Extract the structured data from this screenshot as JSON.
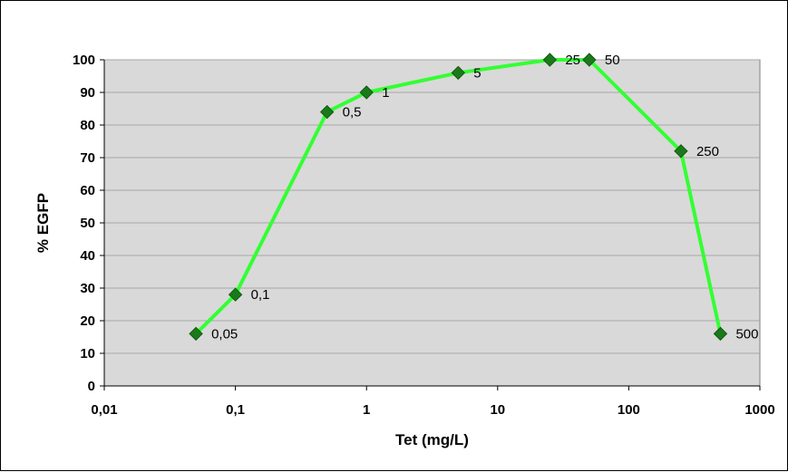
{
  "chart_data": {
    "type": "line",
    "title": "",
    "xlabel": "Tet (mg/L)",
    "ylabel": "% EGFP",
    "x_scale": "log",
    "xlim": [
      0.01,
      1000
    ],
    "ylim": [
      0,
      100
    ],
    "x_ticks": [
      0.01,
      0.1,
      1,
      10,
      100,
      1000
    ],
    "x_tick_labels": [
      "0,01",
      "0,1",
      "1",
      "10",
      "100",
      "1000"
    ],
    "y_ticks": [
      0,
      10,
      20,
      30,
      40,
      50,
      60,
      70,
      80,
      90,
      100
    ],
    "y_tick_labels": [
      "0",
      "10",
      "20",
      "30",
      "40",
      "50",
      "60",
      "70",
      "80",
      "90",
      "100"
    ],
    "grid": "horizontal",
    "legend": "none",
    "colors": {
      "plot_background": "#d9d9d9",
      "line": "#33ff33",
      "marker": "#1a7a1a",
      "gridline": "#a6a6a6"
    },
    "series": [
      {
        "x": [
          0.05,
          0.1,
          0.5,
          1,
          5,
          25,
          50,
          250,
          500
        ],
        "y": [
          16,
          28,
          84,
          90,
          96,
          100,
          100,
          72,
          16
        ],
        "point_labels": [
          "0,05",
          "0,1",
          "0,5",
          "1",
          "5",
          "25",
          "50",
          "250",
          "500"
        ]
      }
    ]
  }
}
